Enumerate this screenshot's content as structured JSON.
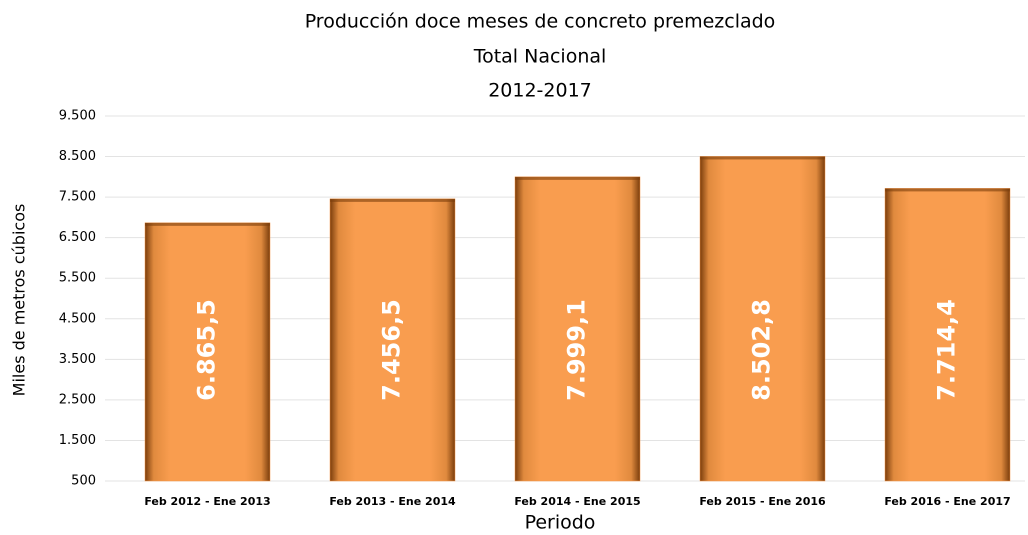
{
  "chart_data": {
    "type": "bar",
    "title": [
      "Producción doce meses de concreto premezclado",
      "Total Nacional",
      "2012-2017"
    ],
    "x_label": "Periodo",
    "y_label": "Miles de metros cúbicos",
    "categories": [
      "Feb 2012 - Ene 2013",
      "Feb 2013 - Ene 2014",
      "Feb 2014 - Ene 2015",
      "Feb 2015 - Ene 2016",
      "Feb 2016 - Ene 2017"
    ],
    "values": [
      6865.5,
      7456.5,
      7999.1,
      8502.8,
      7714.4
    ],
    "value_labels": [
      "6.865,5",
      "7.456,5",
      "7.999,1",
      "8.502,8",
      "7.714,4"
    ],
    "color": "#f79646",
    "ylim": [
      500,
      9500
    ],
    "yticks": [
      {
        "value": 500,
        "label": "500"
      },
      {
        "value": 1500,
        "label": "1.500"
      },
      {
        "value": 2500,
        "label": "2.500"
      },
      {
        "value": 3500,
        "label": "3.500"
      },
      {
        "value": 4500,
        "label": "4.500"
      },
      {
        "value": 5500,
        "label": "5.500"
      },
      {
        "value": 6500,
        "label": "6.500"
      },
      {
        "value": 7500,
        "label": "7.500"
      },
      {
        "value": 8500,
        "label": "8.500"
      },
      {
        "value": 9500,
        "label": "9.500"
      }
    ],
    "grid": true
  }
}
